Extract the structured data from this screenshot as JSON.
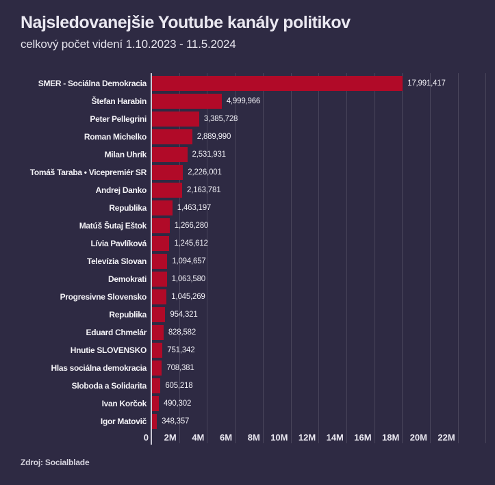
{
  "chart_data": {
    "type": "bar",
    "orientation": "horizontal",
    "title": "Najsledovanejšie Youtube kanály politikov",
    "subtitle": "celkový počet videní 1.10.2023 - 11.5.2024",
    "xlabel": "",
    "ylabel": "",
    "xlim": [
      0,
      24000000
    ],
    "grid": true,
    "legend": false,
    "categories": [
      "SMER - Sociálna Demokracia",
      "Štefan Harabin",
      "Peter Pellegrini",
      "Roman Michelko",
      "Milan Uhrík",
      "Tomáš Taraba • Vicepremiér SR",
      "Andrej Danko",
      "Republika",
      "Matúš Šutaj Eštok",
      "Lívia Pavlíková",
      "Televízia Slovan",
      "Demokrati",
      "Progresivne Slovensko",
      "Republika",
      "Eduard Chmelár",
      "Hnutie SLOVENSKO",
      "Hlas sociálna demokracia",
      "Sloboda a Solidarita",
      "Ivan Korčok",
      "Igor Matovič"
    ],
    "values": [
      17991417,
      4999966,
      3385728,
      2889990,
      2531931,
      2226001,
      2163781,
      1463197,
      1266280,
      1245612,
      1094657,
      1063580,
      1045269,
      954321,
      828582,
      751342,
      708381,
      605218,
      490302,
      348357
    ],
    "value_labels": [
      "17,991,417",
      "4,999,966",
      "3,385,728",
      "2,889,990",
      "2,531,931",
      "2,226,001",
      "2,163,781",
      "1,463,197",
      "1,266,280",
      "1,245,612",
      "1,094,657",
      "1,063,580",
      "1,045,269",
      "954,321",
      "828,582",
      "751,342",
      "708,381",
      "605,218",
      "490,302",
      "348,357"
    ],
    "x_ticks": [
      {
        "label": "0",
        "value": 0
      },
      {
        "label": "2M",
        "value": 2000000
      },
      {
        "label": "4M",
        "value": 4000000
      },
      {
        "label": "6M",
        "value": 6000000
      },
      {
        "label": "8M",
        "value": 8000000
      },
      {
        "label": "10M",
        "value": 10000000
      },
      {
        "label": "12M",
        "value": 12000000
      },
      {
        "label": "14M",
        "value": 14000000
      },
      {
        "label": "16M",
        "value": 16000000
      },
      {
        "label": "18M",
        "value": 18000000
      },
      {
        "label": "20M",
        "value": 20000000
      },
      {
        "label": "22M",
        "value": 22000000
      }
    ],
    "gridline_values": [
      2000000,
      4000000,
      6000000,
      8000000,
      10000000,
      12000000,
      14000000,
      16000000,
      18000000,
      20000000,
      22000000,
      24000000
    ],
    "colors": {
      "bar": "#b10a28",
      "background": "#2e2a43",
      "axis_line": "#cbc9d6",
      "text": "#f3f2f6"
    }
  },
  "footer": {
    "source": "Zdroj: Socialblade"
  }
}
